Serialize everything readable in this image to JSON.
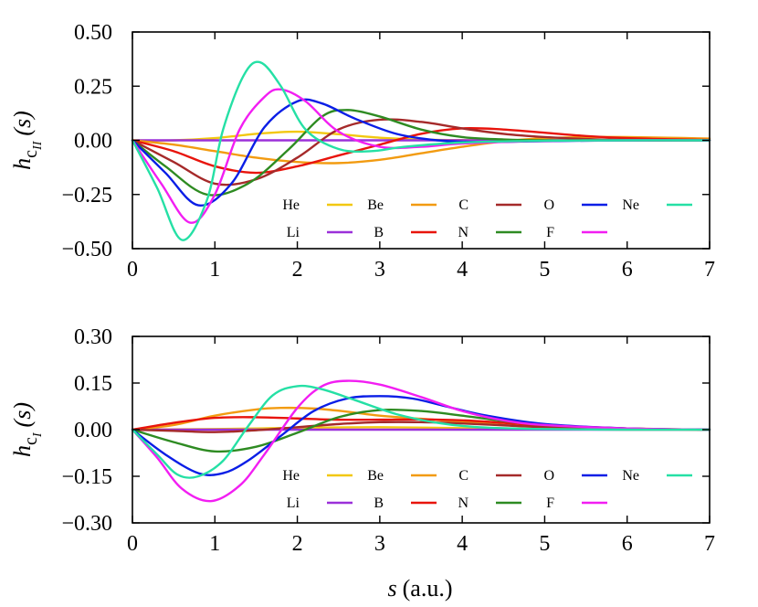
{
  "chart_data": [
    {
      "type": "line",
      "xlabel": "s (a.u.)",
      "ylabel": "h_cII(s)",
      "ylabel_main": "h",
      "ylabel_sub": "c",
      "ylabel_subsub": "II",
      "ylabel_arg": "(s)",
      "xlim": [
        0,
        7
      ],
      "ylim": [
        -0.5,
        0.5
      ],
      "xticks": [
        "0",
        "1",
        "2",
        "3",
        "4",
        "5",
        "6",
        "7"
      ],
      "yticks": [
        "0.50",
        "0.25",
        "0.00",
        "−0.25",
        "−0.50"
      ],
      "grid": false,
      "legend_position": "lower-right",
      "series": [
        {
          "name": "He",
          "color": "#f2c811",
          "x": [
            0,
            0.5,
            1,
            1.5,
            2,
            2.5,
            3,
            3.5,
            4,
            5,
            6,
            7
          ],
          "y": [
            0,
            0.0,
            0.01,
            0.03,
            0.04,
            0.028,
            0.012,
            0.004,
            0.001,
            0,
            0,
            0
          ]
        },
        {
          "name": "Li",
          "color": "#9b30d9",
          "x": [
            0,
            1,
            2,
            3,
            4,
            5,
            6,
            7
          ],
          "y": [
            0,
            0,
            0,
            0,
            0,
            0,
            0,
            0
          ]
        },
        {
          "name": "Be",
          "color": "#f29b11",
          "x": [
            0,
            0.5,
            1,
            1.5,
            2,
            2.5,
            3,
            3.5,
            4,
            4.5,
            5,
            5.5,
            6,
            6.5,
            7
          ],
          "y": [
            0,
            -0.02,
            -0.05,
            -0.08,
            -0.1,
            -0.105,
            -0.09,
            -0.06,
            -0.03,
            -0.005,
            0.01,
            0.015,
            0.015,
            0.012,
            0.008
          ]
        },
        {
          "name": "B",
          "color": "#e8140c",
          "x": [
            0,
            0.5,
            1,
            1.5,
            2,
            2.5,
            3,
            3.5,
            4,
            4.5,
            5,
            5.5,
            6,
            6.5,
            7
          ],
          "y": [
            0,
            -0.05,
            -0.12,
            -0.15,
            -0.12,
            -0.07,
            -0.02,
            0.03,
            0.055,
            0.05,
            0.035,
            0.02,
            0.01,
            0.005,
            0.002
          ]
        },
        {
          "name": "C",
          "color": "#a52a2a",
          "x": [
            0,
            0.5,
            1,
            1.5,
            2,
            2.5,
            3,
            3.5,
            4,
            4.5,
            5,
            5.5,
            6,
            7
          ],
          "y": [
            0,
            -0.1,
            -0.2,
            -0.18,
            -0.08,
            0.05,
            0.095,
            0.085,
            0.055,
            0.03,
            0.015,
            0.006,
            0.002,
            0
          ]
        },
        {
          "name": "N",
          "color": "#2e8b22",
          "x": [
            0,
            0.4,
            0.9,
            1.4,
            1.9,
            2.3,
            2.6,
            3,
            3.5,
            4,
            4.5,
            5,
            6,
            7
          ],
          "y": [
            0,
            -0.12,
            -0.25,
            -0.2,
            -0.04,
            0.11,
            0.14,
            0.11,
            0.05,
            0.015,
            0.004,
            0,
            0,
            0
          ]
        },
        {
          "name": "O",
          "color": "#0a1ee6",
          "x": [
            0,
            0.4,
            0.8,
            1.2,
            1.6,
            2,
            2.3,
            2.7,
            3.2,
            3.7,
            4.2,
            5,
            6,
            7
          ],
          "y": [
            0,
            -0.15,
            -0.3,
            -0.2,
            0.06,
            0.18,
            0.17,
            0.1,
            0.03,
            0.0,
            -0.008,
            -0.004,
            0,
            0
          ]
        },
        {
          "name": "F",
          "color": "#f21ef2",
          "x": [
            0,
            0.35,
            0.7,
            1,
            1.3,
            1.6,
            1.8,
            2.1,
            2.5,
            3,
            3.5,
            4,
            5,
            6,
            7
          ],
          "y": [
            0,
            -0.2,
            -0.38,
            -0.25,
            0.05,
            0.2,
            0.235,
            0.18,
            0.04,
            -0.03,
            -0.03,
            -0.015,
            -0.003,
            0,
            0
          ]
        },
        {
          "name": "Ne",
          "color": "#25e0a5",
          "x": [
            0,
            0.3,
            0.6,
            0.9,
            1.1,
            1.35,
            1.55,
            1.8,
            2.1,
            2.5,
            2.9,
            3.3,
            4,
            5,
            6,
            7
          ],
          "y": [
            0,
            -0.22,
            -0.46,
            -0.28,
            0.05,
            0.3,
            0.36,
            0.25,
            0.05,
            -0.04,
            -0.05,
            -0.03,
            -0.01,
            -0.002,
            0,
            0
          ]
        }
      ]
    },
    {
      "type": "line",
      "xlabel": "s (a.u.)",
      "ylabel": "h_cI(s)",
      "ylabel_main": "h",
      "ylabel_sub": "c",
      "ylabel_subsub": "I",
      "ylabel_arg": "(s)",
      "xlim": [
        0,
        7
      ],
      "ylim": [
        -0.3,
        0.3
      ],
      "xticks": [
        "0",
        "1",
        "2",
        "3",
        "4",
        "5",
        "6",
        "7"
      ],
      "yticks": [
        "0.30",
        "0.15",
        "0.00",
        "−0.15",
        "−0.30"
      ],
      "grid": false,
      "legend_position": "lower-right",
      "series": [
        {
          "name": "He",
          "color": "#f2c811",
          "x": [
            0,
            1,
            2,
            3,
            4,
            5,
            6,
            7
          ],
          "y": [
            0,
            0.002,
            0.006,
            0.008,
            0.005,
            0.002,
            0,
            0
          ]
        },
        {
          "name": "Li",
          "color": "#9b30d9",
          "x": [
            0,
            1,
            2,
            3,
            4,
            5,
            6,
            7
          ],
          "y": [
            0,
            0,
            0,
            0,
            0,
            0,
            0,
            0
          ]
        },
        {
          "name": "Be",
          "color": "#f29b11",
          "x": [
            0,
            0.5,
            1,
            1.5,
            1.8,
            2.2,
            2.6,
            3,
            3.5,
            4,
            4.5,
            5,
            6,
            7
          ],
          "y": [
            0,
            0.015,
            0.045,
            0.065,
            0.07,
            0.068,
            0.058,
            0.045,
            0.035,
            0.025,
            0.015,
            0.008,
            0.002,
            0
          ]
        },
        {
          "name": "B",
          "color": "#e8140c",
          "x": [
            0,
            0.5,
            1,
            1.5,
            2,
            2.5,
            3,
            3.5,
            4,
            4.5,
            5,
            6,
            7
          ],
          "y": [
            0,
            0.022,
            0.038,
            0.04,
            0.036,
            0.032,
            0.032,
            0.033,
            0.03,
            0.022,
            0.013,
            0.004,
            0
          ]
        },
        {
          "name": "C",
          "color": "#a52a2a",
          "x": [
            0,
            0.5,
            1,
            1.5,
            2,
            2.5,
            3,
            3.5,
            4,
            4.5,
            5,
            6,
            7
          ],
          "y": [
            0,
            -0.004,
            -0.008,
            -0.002,
            0.008,
            0.018,
            0.024,
            0.024,
            0.02,
            0.014,
            0.008,
            0.002,
            0
          ]
        },
        {
          "name": "N",
          "color": "#2e8b22",
          "x": [
            0,
            0.5,
            1,
            1.5,
            2,
            2.5,
            3,
            3.5,
            4,
            4.5,
            5,
            6,
            7
          ],
          "y": [
            0,
            -0.04,
            -0.07,
            -0.055,
            -0.01,
            0.04,
            0.063,
            0.06,
            0.045,
            0.028,
            0.015,
            0.004,
            0
          ]
        },
        {
          "name": "O",
          "color": "#0a1ee6",
          "x": [
            0,
            0.4,
            0.8,
            1.1,
            1.4,
            1.8,
            2.2,
            2.6,
            3,
            3.4,
            3.8,
            4.3,
            5,
            6,
            7
          ],
          "y": [
            0,
            -0.08,
            -0.14,
            -0.14,
            -0.1,
            -0.02,
            0.06,
            0.1,
            0.108,
            0.1,
            0.075,
            0.045,
            0.018,
            0.004,
            0
          ]
        },
        {
          "name": "F",
          "color": "#f21ef2",
          "x": [
            0,
            0.3,
            0.6,
            0.95,
            1.3,
            1.6,
            2,
            2.3,
            2.6,
            3,
            3.5,
            4,
            4.5,
            5,
            6,
            7
          ],
          "y": [
            0,
            -0.09,
            -0.19,
            -0.23,
            -0.18,
            -0.08,
            0.07,
            0.14,
            0.157,
            0.145,
            0.105,
            0.06,
            0.03,
            0.015,
            0.004,
            0
          ]
        },
        {
          "name": "Ne",
          "color": "#25e0a5",
          "x": [
            0,
            0.3,
            0.55,
            0.8,
            1.1,
            1.4,
            1.7,
            2,
            2.3,
            2.7,
            3.2,
            3.7,
            4.2,
            5,
            6,
            7
          ],
          "y": [
            0,
            -0.08,
            -0.145,
            -0.15,
            -0.1,
            0.01,
            0.11,
            0.14,
            0.13,
            0.095,
            0.05,
            0.022,
            0.008,
            0.002,
            0,
            0
          ]
        }
      ]
    }
  ]
}
